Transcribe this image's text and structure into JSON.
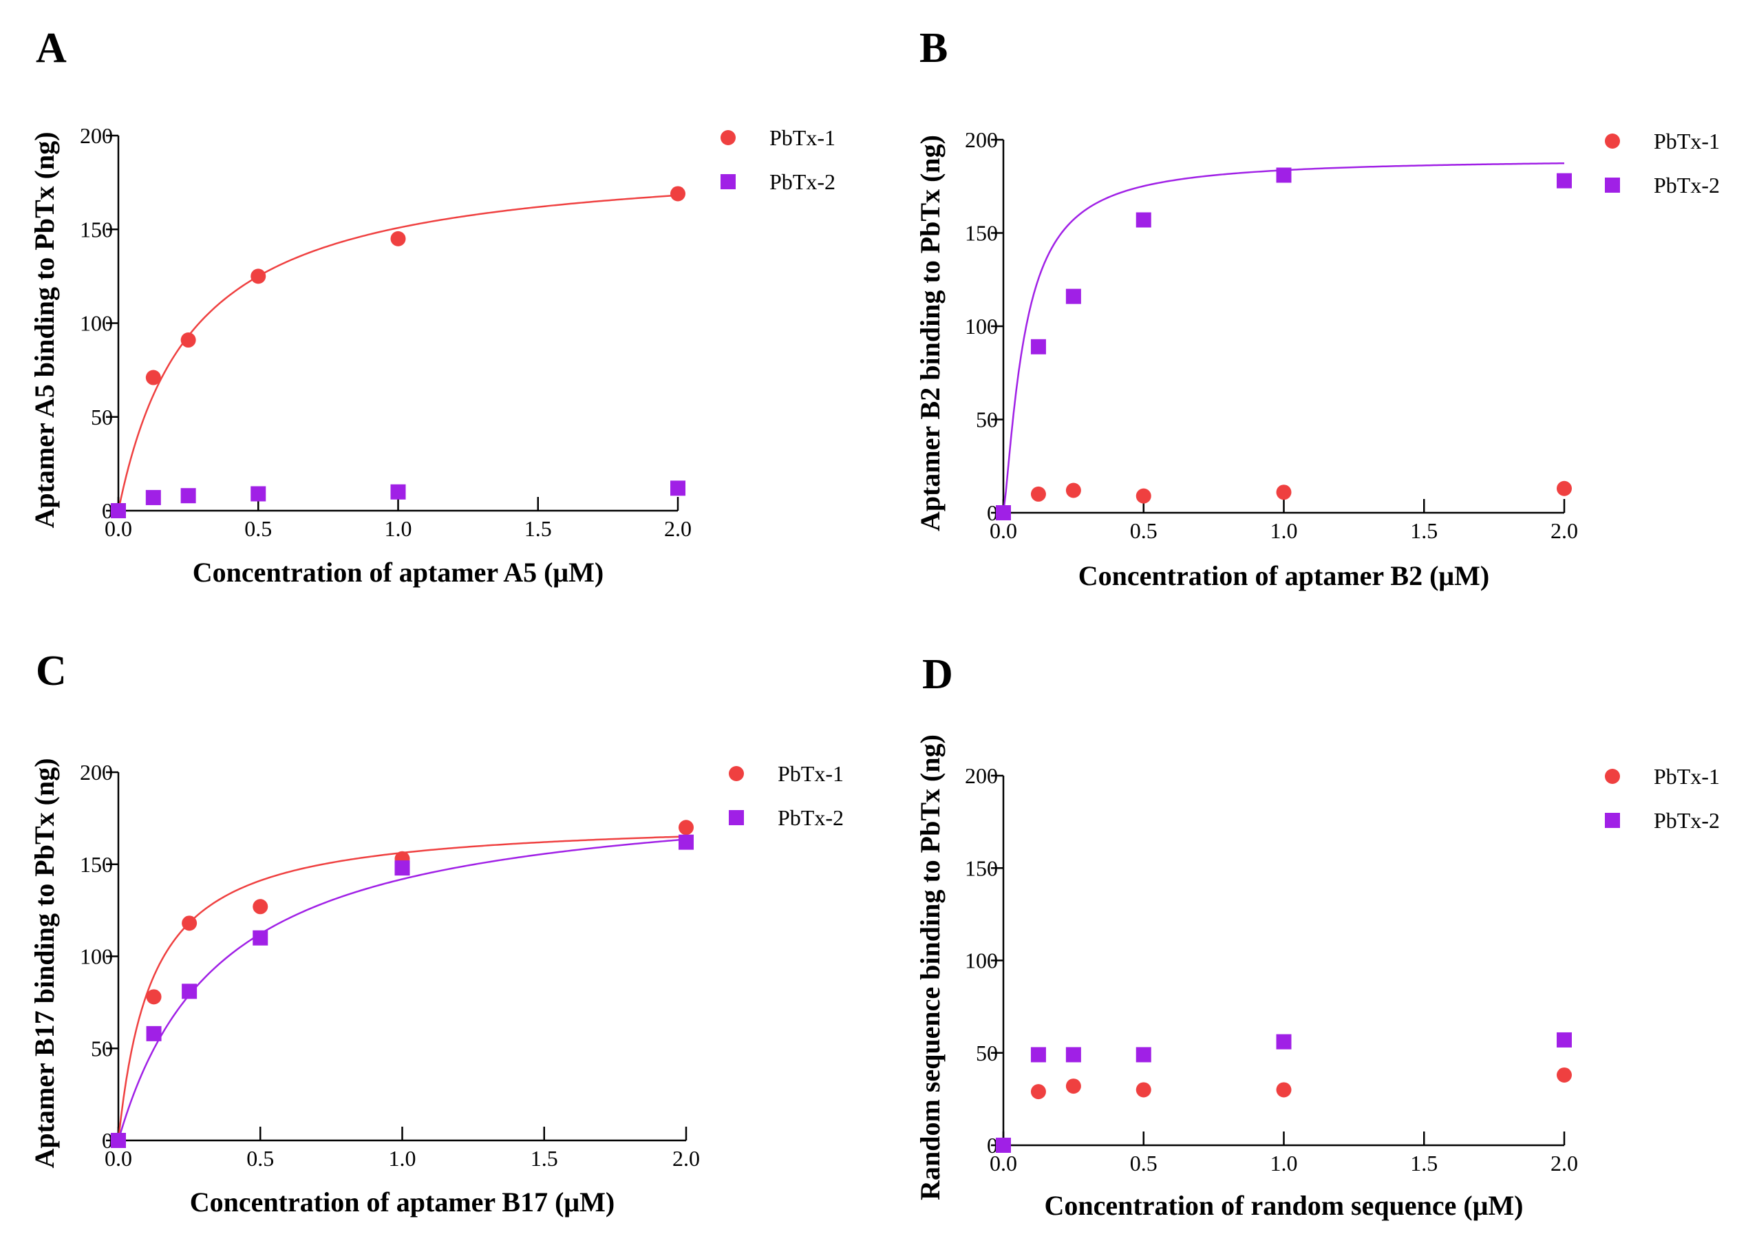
{
  "colors": {
    "pbtx1": "#EF4040",
    "pbtx2": "#A020E6",
    "axis": "#000000"
  },
  "chart_data": [
    {
      "panel": "A",
      "type": "scatter",
      "xlabel": "Concentration of aptamer A5 (μM)",
      "ylabel": "Aptamer A5 binding to PbTx (ng)",
      "xlim": [
        0,
        2
      ],
      "ylim": [
        0,
        200
      ],
      "xticks": [
        0,
        0.5,
        1,
        1.5,
        2
      ],
      "xtick_labels": [
        "0.0",
        "0.5",
        "1.0",
        "1.5",
        "2.0"
      ],
      "yticks": [
        0,
        50,
        100,
        150,
        200
      ],
      "ytick_labels": [
        "0",
        "50",
        "100",
        "150",
        "200"
      ],
      "legend_position": "top-right",
      "series": [
        {
          "name": "PbTx-1",
          "marker": "circle",
          "color": "#EF4040",
          "x": [
            0,
            0.125,
            0.25,
            0.5,
            1,
            2
          ],
          "y": [
            0,
            71,
            91,
            125,
            145,
            169
          ],
          "fit": {
            "bmax": 190,
            "kd": 0.26
          }
        },
        {
          "name": "PbTx-2",
          "marker": "square",
          "color": "#A020E6",
          "x": [
            0,
            0.125,
            0.25,
            0.5,
            1,
            2
          ],
          "y": [
            0,
            7,
            8,
            9,
            10,
            12
          ]
        }
      ]
    },
    {
      "panel": "B",
      "type": "scatter",
      "xlabel": "Concentration of aptamer B2 (μM)",
      "ylabel": "Aptamer B2 binding to PbTx (ng)",
      "xlim": [
        0,
        2
      ],
      "ylim": [
        0,
        200
      ],
      "xticks": [
        0,
        0.5,
        1,
        1.5,
        2
      ],
      "xtick_labels": [
        "0.0",
        "0.5",
        "1.0",
        "1.5",
        "2.0"
      ],
      "yticks": [
        0,
        50,
        100,
        150,
        200
      ],
      "ytick_labels": [
        "0",
        "50",
        "100",
        "150",
        "200"
      ],
      "legend_position": "top-right",
      "series": [
        {
          "name": "PbTx-1",
          "marker": "circle",
          "color": "#EF4040",
          "x": [
            0,
            0.125,
            0.25,
            0.5,
            1,
            2
          ],
          "y": [
            0,
            10,
            12,
            9,
            11,
            13
          ]
        },
        {
          "name": "PbTx-2",
          "marker": "square",
          "color": "#A020E6",
          "x": [
            0,
            0.125,
            0.25,
            0.5,
            1,
            2
          ],
          "y": [
            0,
            89,
            116,
            157,
            181,
            178
          ],
          "fit": {
            "bmax": 190,
            "kd": 0.075,
            "hill": 1.3
          }
        }
      ]
    },
    {
      "panel": "C",
      "type": "scatter",
      "xlabel": "Concentration of aptamer B17 (μM)",
      "ylabel": "Aptamer B17 binding to PbTx (ng)",
      "xlim": [
        0,
        2
      ],
      "ylim": [
        0,
        200
      ],
      "xticks": [
        0,
        0.5,
        1,
        1.5,
        2
      ],
      "xtick_labels": [
        "0.0",
        "0.5",
        "1.0",
        "1.5",
        "2.0"
      ],
      "yticks": [
        0,
        50,
        100,
        150,
        200
      ],
      "ytick_labels": [
        "0",
        "50",
        "100",
        "150",
        "200"
      ],
      "legend_position": "top-right",
      "series": [
        {
          "name": "PbTx-1",
          "marker": "circle",
          "color": "#EF4040",
          "x": [
            0,
            0.125,
            0.25,
            0.5,
            1,
            2
          ],
          "y": [
            0,
            78,
            118,
            127,
            153,
            170
          ],
          "fit": {
            "bmax": 175,
            "kd": 0.12
          }
        },
        {
          "name": "PbTx-2",
          "marker": "square",
          "color": "#A020E6",
          "x": [
            0,
            0.125,
            0.25,
            0.5,
            1,
            2
          ],
          "y": [
            0,
            58,
            81,
            110,
            148,
            162
          ],
          "fit": {
            "bmax": 193,
            "kd": 0.36
          }
        }
      ]
    },
    {
      "panel": "D",
      "type": "scatter",
      "xlabel": "Concentration of random sequence (μM)",
      "ylabel": "Random sequence binding to PbTx (ng)",
      "xlim": [
        0,
        2
      ],
      "ylim": [
        0,
        200
      ],
      "xticks": [
        0,
        0.5,
        1,
        1.5,
        2
      ],
      "xtick_labels": [
        "0.0",
        "0.5",
        "1.0",
        "1.5",
        "2.0"
      ],
      "yticks": [
        0,
        50,
        100,
        150,
        200
      ],
      "ytick_labels": [
        "0",
        "50",
        "100",
        "150",
        "200"
      ],
      "legend_position": "top-right",
      "series": [
        {
          "name": "PbTx-1",
          "marker": "circle",
          "color": "#EF4040",
          "x": [
            0,
            0.125,
            0.25,
            0.5,
            1,
            2
          ],
          "y": [
            0,
            29,
            32,
            30,
            30,
            38
          ]
        },
        {
          "name": "PbTx-2",
          "marker": "square",
          "color": "#A020E6",
          "x": [
            0,
            0.125,
            0.25,
            0.5,
            1,
            2
          ],
          "y": [
            0,
            49,
            49,
            49,
            56,
            57
          ]
        }
      ]
    }
  ]
}
